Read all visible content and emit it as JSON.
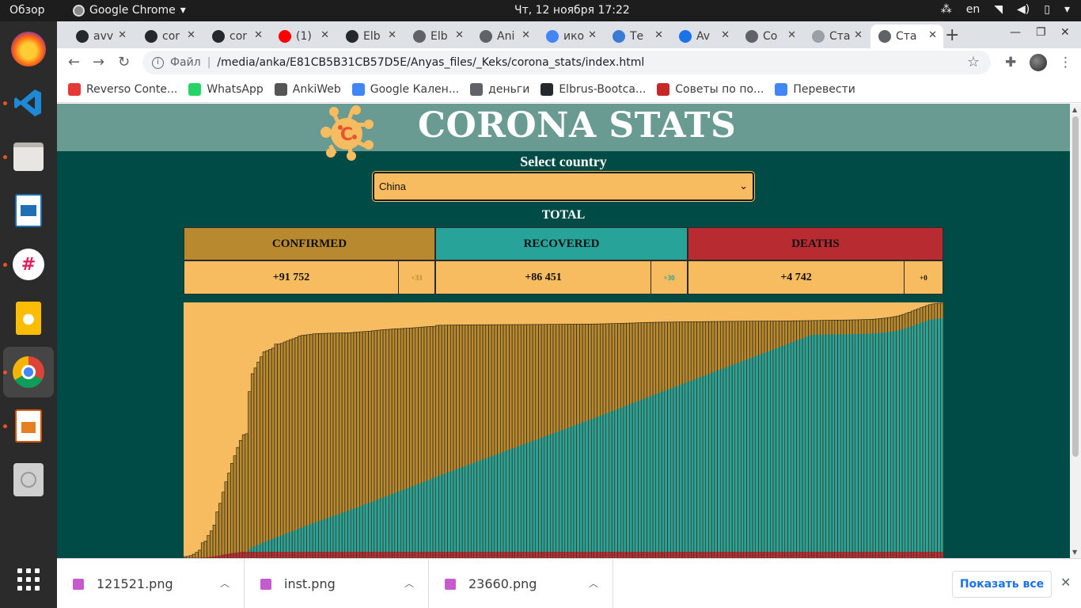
{
  "topbar": {
    "activities": "Обзор",
    "app_name": "Google Chrome",
    "clock": "Чт, 12 ноября  17:22",
    "keyboard_layout": "en"
  },
  "tabs": [
    {
      "label": "avv",
      "icon": "github-icon",
      "color": "#24292e"
    },
    {
      "label": "cor",
      "icon": "github-icon",
      "color": "#24292e"
    },
    {
      "label": "cor",
      "icon": "github-icon",
      "color": "#24292e"
    },
    {
      "label": "(1)",
      "icon": "youtube-icon",
      "color": "#ff0000"
    },
    {
      "label": "Elb",
      "icon": "github-icon",
      "color": "#24292e"
    },
    {
      "label": "Elb",
      "icon": "globe-icon",
      "color": "#5f6368"
    },
    {
      "label": "Ani",
      "icon": "globe-icon",
      "color": "#5f6368"
    },
    {
      "label": "ико",
      "icon": "google-icon",
      "color": "#4285f4"
    },
    {
      "label": "Те",
      "icon": "telegraph-icon",
      "color": "#3a7bd5"
    },
    {
      "label": "Av",
      "icon": "f-icon",
      "color": "#1a73e8"
    },
    {
      "label": "Co",
      "icon": "globe-icon",
      "color": "#5f6368"
    },
    {
      "label": "Ста",
      "icon": "loading-icon",
      "color": "#9aa0a6"
    },
    {
      "label": "Ста",
      "icon": "globe-icon",
      "color": "#5f6368"
    }
  ],
  "omnibox": {
    "scheme_label": "Файл",
    "url": "/media/anka/E81CB5B31CB57D5E/Anyas_files/_Keks/corona_stats/index.html"
  },
  "bookmarks": [
    {
      "label": "Reverso Conte...",
      "color": "#e53935"
    },
    {
      "label": "WhatsApp",
      "color": "#25d366"
    },
    {
      "label": "AnkiWeb",
      "color": "#555555"
    },
    {
      "label": "Google Кален...",
      "color": "#4285f4"
    },
    {
      "label": "деньги",
      "color": "#5f6368"
    },
    {
      "label": "Elbrus-Bootca...",
      "color": "#24292e"
    },
    {
      "label": "Советы по по...",
      "color": "#c62828"
    },
    {
      "label": "Перевести",
      "color": "#4285f4"
    }
  ],
  "page": {
    "title": "CORONA STATS",
    "select_label": "Select country",
    "selected_country": "China",
    "total_label": "TOTAL",
    "stats": {
      "confirmed": {
        "label": "CONFIRMED",
        "value": "+91 752",
        "delta": "+33",
        "head_color": "#b8892e",
        "delta_color": "#b8892e"
      },
      "recovered": {
        "label": "RECOVERED",
        "value": "+86 451",
        "delta": "+30",
        "head_color": "#28a39a",
        "delta_color": "#28a39a"
      },
      "deaths": {
        "label": "DEATHS",
        "value": "+4 742",
        "delta": "+0",
        "head_color": "#b72b31",
        "delta_color": "#111111"
      }
    }
  },
  "chart_data": {
    "type": "bar",
    "ylim": [
      0,
      92000
    ],
    "grid": false,
    "series_colors": {
      "confirmed": "#b8892e",
      "recovered": "#28a39a",
      "deaths": "#b72b31"
    },
    "confirmed": [
      548,
      643,
      920,
      1406,
      2075,
      2877,
      5509,
      6087,
      8141,
      9802,
      11891,
      16630,
      19716,
      23707,
      27440,
      30587,
      34110,
      36814,
      39829,
      42354,
      44386,
      44759,
      59895,
      66358,
      68413,
      70513,
      72434,
      74211,
      74619,
      75077,
      75550,
      77001,
      77022,
      77241,
      77754,
      78166,
      78600,
      78928,
      79356,
      79932,
      80136,
      80261,
      80386,
      80537,
      80690,
      80770,
      80823,
      80860,
      80887,
      80921,
      80932,
      80945,
      80977,
      81003,
      81033,
      81058,
      81102,
      81156,
      81250,
      81305,
      81435,
      81498,
      81591,
      81661,
      81782,
      81897,
      81999,
      82122,
      82198,
      82279,
      82361,
      82432,
      82511,
      82543,
      82602,
      82665,
      82718,
      82809,
      82883,
      82941,
      83014,
      83134,
      83213,
      83306,
      83356,
      83403,
      83760,
      83787,
      83805,
      83817,
      83853,
      83868,
      83884,
      83899,
      83909,
      83912,
      83918,
      83940,
      83944,
      83956,
      83959,
      83964,
      83966,
      83968,
      83970,
      83975,
      83976,
      83990,
      84010,
      84011,
      84014,
      84016,
      84018,
      84020,
      84025,
      84030,
      84038,
      84044,
      84054,
      84060,
      84063,
      84065,
      84075,
      84085,
      84095,
      84102,
      84106,
      84121,
      84128,
      84146,
      84154,
      84160,
      84171,
      84177,
      84186,
      84198,
      84209,
      84216,
      84228,
      84238,
      84253,
      84265,
      84286,
      84306,
      84335,
      84378,
      84404,
      84422,
      84458,
      84494,
      84525,
      84546,
      84572,
      84602,
      84655,
      84686,
      84721,
      84765,
      84786,
      84821,
      84849,
      84864,
      84888,
      84908,
      84919,
      84930,
      84938,
      84951,
      84966,
      84981,
      85004,
      85024,
      85042,
      85054,
      85070,
      85081,
      85087,
      85099,
      85114,
      85122,
      85134,
      85144,
      85153,
      85165,
      85174,
      85184,
      85194,
      85202,
      85214,
      85223,
      85229,
      85238,
      85245,
      85256,
      85265,
      85270,
      85275,
      85284,
      85291,
      85297,
      85305,
      85307,
      85310,
      85314,
      85322,
      85336,
      85352,
      85372,
      85384,
      85403,
      85414,
      85422,
      85438,
      85450,
      85470,
      85485,
      85500,
      85522,
      85548,
      85565,
      85591,
      85611,
      85622,
      85646,
      85659,
      85672,
      85685,
      85704,
      85729,
      85747,
      85772,
      85810,
      85826,
      85868,
      85915,
      85970,
      86070,
      86176,
      86288,
      86400,
      86550,
      86700,
      86900,
      87100,
      87400,
      87700,
      88100,
      88500,
      88900,
      89300,
      89700,
      90100,
      90500,
      90900,
      91200,
      91450,
      91600,
      91700,
      91752
    ],
    "recovered_ratio_note": ""
  }
}
